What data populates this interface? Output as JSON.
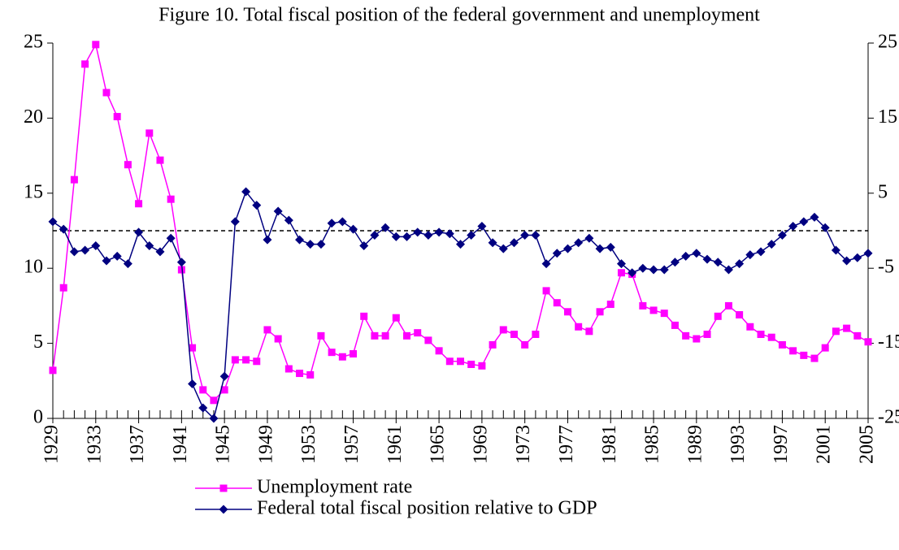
{
  "chart_data": {
    "type": "line",
    "title": "Figure 10. Total fiscal position of the federal government and unemployment",
    "x": [
      1929,
      1930,
      1931,
      1932,
      1933,
      1934,
      1935,
      1936,
      1937,
      1938,
      1939,
      1940,
      1941,
      1942,
      1943,
      1944,
      1945,
      1946,
      1947,
      1948,
      1949,
      1950,
      1951,
      1952,
      1953,
      1954,
      1955,
      1956,
      1957,
      1958,
      1959,
      1960,
      1961,
      1962,
      1963,
      1964,
      1965,
      1966,
      1967,
      1968,
      1969,
      1970,
      1971,
      1972,
      1973,
      1974,
      1975,
      1976,
      1977,
      1978,
      1979,
      1980,
      1981,
      1982,
      1983,
      1984,
      1985,
      1986,
      1987,
      1988,
      1989,
      1990,
      1991,
      1992,
      1993,
      1994,
      1995,
      1996,
      1997,
      1998,
      1999,
      2000,
      2001,
      2002,
      2003,
      2004,
      2005
    ],
    "xlim": [
      1929,
      2005
    ],
    "xticks": [
      1929,
      1933,
      1937,
      1941,
      1945,
      1949,
      1953,
      1957,
      1961,
      1965,
      1969,
      1973,
      1977,
      1981,
      1985,
      1989,
      1993,
      1997,
      2001,
      2005
    ],
    "ylim": [
      0,
      25
    ],
    "yticks": [
      0,
      5,
      10,
      15,
      20,
      25
    ],
    "y2lim": [
      -25,
      25
    ],
    "y2ticks": [
      -25,
      -15,
      -5,
      5,
      15,
      25
    ],
    "reference_lines": [
      {
        "axis": "y2",
        "value": 0,
        "style": "dashed"
      }
    ],
    "series": [
      {
        "name": "Unemployment rate",
        "color": "#ff00ff",
        "marker": "square",
        "values": [
          3.2,
          8.7,
          15.9,
          23.6,
          24.9,
          21.7,
          20.1,
          16.9,
          14.3,
          19.0,
          17.2,
          14.6,
          9.9,
          4.7,
          1.9,
          1.2,
          1.9,
          3.9,
          3.9,
          3.8,
          5.9,
          5.3,
          3.3,
          3.0,
          2.9,
          5.5,
          4.4,
          4.1,
          4.3,
          6.8,
          5.5,
          5.5,
          6.7,
          5.5,
          5.7,
          5.2,
          4.5,
          3.8,
          3.8,
          3.6,
          3.5,
          4.9,
          5.9,
          5.6,
          4.9,
          5.6,
          8.5,
          7.7,
          7.1,
          6.1,
          5.8,
          7.1,
          7.6,
          9.7,
          9.6,
          7.5,
          7.2,
          7.0,
          6.2,
          5.5,
          5.3,
          5.6,
          6.8,
          7.5,
          6.9,
          6.1,
          5.6,
          5.4,
          4.9,
          4.5,
          4.2,
          4.0,
          4.7,
          5.8,
          6.0,
          5.5,
          5.1
        ]
      },
      {
        "name": "Federal total fiscal position relative to GDP",
        "color": "#000080",
        "marker": "diamond",
        "axis": "y2",
        "values": [
          1.2,
          0.2,
          -2.8,
          -2.6,
          -2.0,
          -4.0,
          -3.4,
          -4.4,
          -0.2,
          -2.0,
          -2.8,
          -1.0,
          -4.2,
          -20.4,
          -23.6,
          -25.0,
          -19.4,
          1.2,
          5.2,
          3.4,
          -1.2,
          2.6,
          1.4,
          -1.2,
          -1.8,
          -1.8,
          1.0,
          1.2,
          0.2,
          -2.0,
          -0.6,
          0.4,
          -0.8,
          -0.8,
          -0.2,
          -0.6,
          -0.2,
          -0.4,
          -1.8,
          -0.6,
          0.6,
          -1.6,
          -2.4,
          -1.6,
          -0.6,
          -0.6,
          -4.4,
          -3.0,
          -2.4,
          -1.6,
          -1.0,
          -2.4,
          -2.2,
          -4.4,
          -5.6,
          -5.0,
          -5.2,
          -5.2,
          -4.2,
          -3.4,
          -3.0,
          -3.8,
          -4.2,
          -5.2,
          -4.4,
          -3.2,
          -2.8,
          -1.8,
          -0.6,
          0.6,
          1.2,
          1.8,
          0.4,
          -2.6,
          -4.0,
          -3.6,
          -3.0
        ]
      }
    ]
  }
}
